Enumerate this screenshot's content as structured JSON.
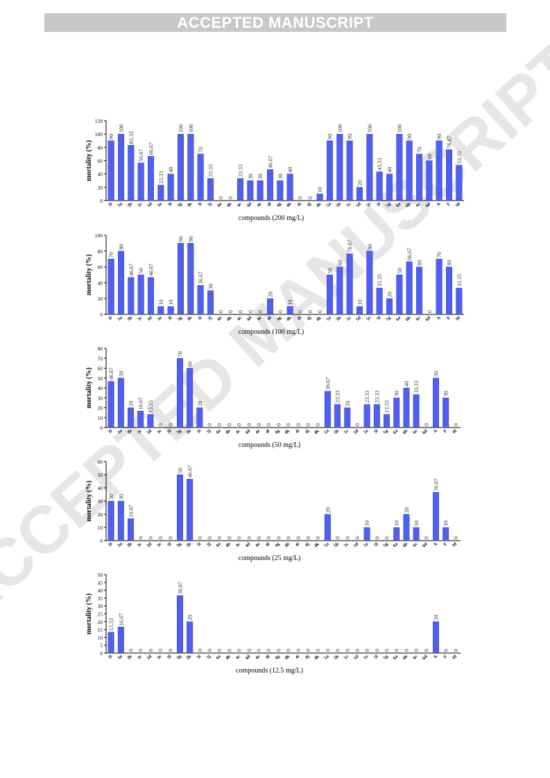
{
  "header": {
    "banner": "ACCEPTED MANUSCRIPT"
  },
  "watermark": {
    "text": "ACCEPTED MANUSCRIPT",
    "color": "#e6e6e6"
  },
  "style": {
    "bar_color": "#4f5ff0",
    "bar_edge": "#1f2bb0"
  },
  "chart_data": [
    {
      "type": "bar",
      "categories": [
        "D",
        "3a",
        "3b",
        "3c",
        "3d",
        "3e",
        "3f",
        "3g",
        "3h",
        "3i",
        "3j",
        "4a",
        "4b",
        "4c",
        "4d",
        "4e",
        "4f",
        "4g",
        "4h",
        "4i",
        "4j",
        "4k",
        "5a",
        "5b",
        "5c",
        "5d",
        "5e",
        "5f",
        "5g",
        "6a",
        "6b",
        "6c",
        "6d",
        "A",
        "F",
        "M"
      ],
      "values": [
        90,
        100,
        83.33,
        56.67,
        66.67,
        23.33,
        40,
        100,
        100,
        70,
        33.33,
        0,
        0,
        33.33,
        30,
        30,
        46.67,
        30,
        40,
        0,
        0,
        10,
        90,
        100,
        90,
        20,
        100,
        43.33,
        40,
        100,
        90,
        70,
        60,
        90,
        76.67,
        53.33
      ],
      "labels": [
        "90",
        "100",
        "83.33",
        "56.67",
        "66.67",
        "23.33",
        "40",
        "100",
        "100",
        "70",
        "33.33",
        "0",
        "0",
        "33.33",
        "30",
        "30",
        "46.67",
        "30",
        "40",
        "0",
        "0",
        "10",
        "90",
        "100",
        "90",
        "20",
        "100",
        "43.33",
        "40",
        "100",
        "90",
        "70",
        "60",
        "90",
        "76.67",
        "53.33"
      ],
      "xlabel": "compounds (200 mg/L)",
      "ylabel": "mortality (%)",
      "ylim": [
        0,
        120
      ],
      "yticks": [
        0,
        20,
        40,
        60,
        80,
        100,
        120
      ]
    },
    {
      "type": "bar",
      "categories": [
        "D",
        "3a",
        "3b",
        "3c",
        "3d",
        "3e",
        "3f",
        "3g",
        "3h",
        "3i",
        "3j",
        "4a",
        "4b",
        "4c",
        "4d",
        "4e",
        "4f",
        "4g",
        "4h",
        "4i",
        "4j",
        "4k",
        "5a",
        "5b",
        "5c",
        "5d",
        "5e",
        "5f",
        "5g",
        "6a",
        "6b",
        "6c",
        "6d",
        "A",
        "F",
        "M"
      ],
      "values": [
        70,
        80,
        46.67,
        50,
        46.67,
        10,
        10,
        90,
        90,
        36.67,
        30,
        0,
        0,
        0,
        0,
        0,
        20,
        0,
        10,
        0,
        0,
        0,
        50,
        60,
        76.67,
        10,
        80,
        33.33,
        20,
        50,
        66.67,
        60,
        0,
        70,
        60,
        33.33
      ],
      "labels": [
        "70",
        "80",
        "46.67",
        "50",
        "46.67",
        "10",
        "10",
        "90",
        "90",
        "36.67",
        "30",
        "0",
        "0",
        "0",
        "0",
        "0",
        "20",
        "0",
        "10",
        "0",
        "0",
        "0",
        "50",
        "60",
        "76.67",
        "10",
        "80",
        "33.33",
        "20",
        "50",
        "66.67",
        "60",
        "0",
        "70",
        "60",
        "33.33"
      ],
      "xlabel": "compounds (100 mg/L)",
      "ylabel": "mortality (%)",
      "ylim": [
        0,
        100
      ],
      "yticks": [
        0,
        20,
        40,
        60,
        80,
        100
      ]
    },
    {
      "type": "bar",
      "categories": [
        "D",
        "3a",
        "3b",
        "3c",
        "3d",
        "3e",
        "3f",
        "3g",
        "3h",
        "3i",
        "3j",
        "4a",
        "4b",
        "4c",
        "4d",
        "4e",
        "4f",
        "4g",
        "4h",
        "4i",
        "4j",
        "4k",
        "5a",
        "5b",
        "5c",
        "5d",
        "5e",
        "5f",
        "5g",
        "6a",
        "6b",
        "6c",
        "6d",
        "A",
        "F",
        "M"
      ],
      "values": [
        46.67,
        50,
        20,
        16.67,
        13.33,
        0,
        0,
        70,
        60,
        20,
        0,
        0,
        0,
        0,
        0,
        0,
        0,
        0,
        0,
        0,
        0,
        0,
        36.67,
        23.33,
        20,
        0,
        23.33,
        23.33,
        13.33,
        30,
        40,
        33.33,
        0,
        50,
        30,
        0
      ],
      "labels": [
        "46.67",
        "50",
        "20",
        "16.67",
        "13.33",
        "0",
        "0",
        "70",
        "60",
        "20",
        "0",
        "0",
        "0",
        "0",
        "0",
        "0",
        "0",
        "0",
        "0",
        "0",
        "0",
        "0",
        "36.67",
        "23.33",
        "20",
        "0",
        "23.33",
        "23.33",
        "13.33",
        "30",
        "40",
        "33.33",
        "0",
        "50",
        "30",
        "0"
      ],
      "xlabel": "compounds (50 mg/L)",
      "ylabel": "mortality (%)",
      "ylim": [
        0,
        80
      ],
      "yticks": [
        0,
        10,
        20,
        30,
        40,
        50,
        60,
        70,
        80
      ]
    },
    {
      "type": "bar",
      "categories": [
        "D",
        "3a",
        "3b",
        "3c",
        "3d",
        "3e",
        "3f",
        "3g",
        "3h",
        "3i",
        "3j",
        "4a",
        "4b",
        "4c",
        "4d",
        "4e",
        "4f",
        "4g",
        "4h",
        "4i",
        "4j",
        "4k",
        "5a",
        "5b",
        "5c",
        "5d",
        "5e",
        "5f",
        "5g",
        "6a",
        "6b",
        "6c",
        "6d",
        "A",
        "F",
        "M"
      ],
      "values": [
        30,
        30,
        16.67,
        0,
        0,
        0,
        0,
        50,
        46.67,
        0,
        0,
        0,
        0,
        0,
        0,
        0,
        0,
        0,
        0,
        0,
        0,
        0,
        20,
        0,
        0,
        0,
        10,
        0,
        0,
        10,
        20,
        10,
        0,
        36.67,
        10,
        0
      ],
      "labels": [
        "30",
        "30",
        "16.67",
        "0",
        "0",
        "0",
        "0",
        "50",
        "46.67",
        "0",
        "0",
        "0",
        "0",
        "0",
        "0",
        "0",
        "0",
        "0",
        "0",
        "0",
        "0",
        "0",
        "20",
        "0",
        "0",
        "0",
        "10",
        "0",
        "0",
        "10",
        "20",
        "10",
        "0",
        "36.67",
        "10",
        "0"
      ],
      "xlabel": "compounds (25 mg/L)",
      "ylabel": "mortality (%)",
      "ylim": [
        0,
        60
      ],
      "yticks": [
        0,
        10,
        20,
        30,
        40,
        50,
        60
      ]
    },
    {
      "type": "bar",
      "categories": [
        "D",
        "3a",
        "3b",
        "3c",
        "3d",
        "3e",
        "3f",
        "3g",
        "3h",
        "3i",
        "3j",
        "4a",
        "4b",
        "4c",
        "4d",
        "4e",
        "4f",
        "4g",
        "4h",
        "4i",
        "4j",
        "4k",
        "5a",
        "5b",
        "5c",
        "5d",
        "5e",
        "5f",
        "5g",
        "6a",
        "6b",
        "6c",
        "6d",
        "A",
        "F",
        "M"
      ],
      "values": [
        13.33,
        16.67,
        0,
        0,
        0,
        0,
        0,
        36.67,
        20,
        0,
        0,
        0,
        0,
        0,
        0,
        0,
        0,
        0,
        0,
        0,
        0,
        0,
        0,
        0,
        0,
        0,
        0,
        0,
        0,
        0,
        0,
        0,
        0,
        20,
        0,
        0
      ],
      "labels": [
        "13.33",
        "16.67",
        "0",
        "0",
        "0",
        "0",
        "0",
        "36.67",
        "20",
        "0",
        "0",
        "0",
        "0",
        "0",
        "0",
        "0",
        "0",
        "0",
        "0",
        "0",
        "0",
        "0",
        "0",
        "0",
        "0",
        "0",
        "0",
        "0",
        "0",
        "0",
        "0",
        "0",
        "0",
        "20",
        "0",
        "0"
      ],
      "xlabel": "compounds (12.5 mg/L)",
      "ylabel": "mortality (%)",
      "ylim": [
        0,
        50
      ],
      "yticks": [
        0,
        5,
        10,
        15,
        20,
        25,
        30,
        35,
        40,
        45,
        50
      ]
    }
  ]
}
